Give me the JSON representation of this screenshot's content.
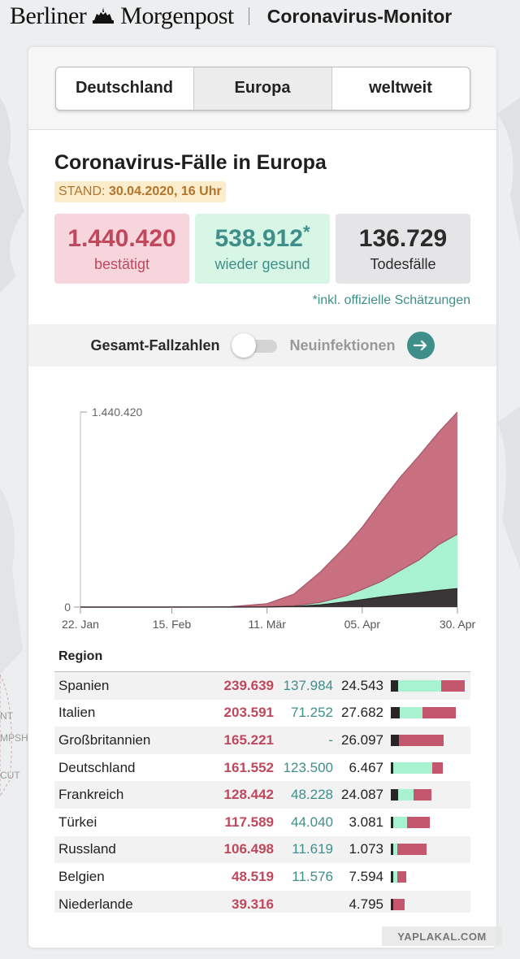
{
  "header": {
    "brand": "Berliner Morgenpost",
    "brand_left": "Berliner",
    "brand_right": "Morgenpost",
    "product_title": "Coronavirus-Monitor"
  },
  "tabs": [
    {
      "label": "Deutschland",
      "active": false
    },
    {
      "label": "Europa",
      "active": true
    },
    {
      "label": "weltweit",
      "active": false
    }
  ],
  "main": {
    "title": "Coronavirus-Fälle in Europa",
    "stand_label": "STAND:",
    "stand_value": "30.04.2020, 16 Uhr",
    "stats": {
      "confirmed_value": "1.440.420",
      "confirmed_label": "bestätigt",
      "recovered_value": "538.912",
      "recovered_mark": "*",
      "recovered_label": "wieder gesund",
      "deaths_value": "136.729",
      "deaths_label": "Todesfälle"
    },
    "footnote": "*inkl. offizielle Schätzungen",
    "toggle": {
      "left_label": "Gesamt-Fallzahlen",
      "right_label": "Neuinfektionen",
      "state": "off"
    }
  },
  "chart_data": {
    "type": "area",
    "x_ticks": [
      "22. Jan",
      "15. Feb",
      "11. Mär",
      "05. Apr",
      "30. Apr"
    ],
    "y_tick_labels": [
      "0",
      "1.440.420"
    ],
    "ylim": [
      0,
      1440420
    ],
    "x": [
      "22. Jan",
      "15. Feb",
      "01. Mär",
      "11. Mär",
      "18. Mär",
      "25. Mär",
      "01. Apr",
      "05. Apr",
      "10. Apr",
      "15. Apr",
      "20. Apr",
      "25. Apr",
      "30. Apr"
    ],
    "series": [
      {
        "key": "confirmed",
        "color": "#c97080",
        "values": [
          0,
          50,
          2500,
          25000,
          95000,
          260000,
          460000,
          590000,
          780000,
          960000,
          1120000,
          1290000,
          1440420
        ]
      },
      {
        "key": "recovered",
        "color": "#a8f2d2",
        "values": [
          0,
          10,
          500,
          3000,
          10000,
          35000,
          85000,
          130000,
          190000,
          270000,
          350000,
          460000,
          538912
        ]
      },
      {
        "key": "deaths",
        "color": "#3a3638",
        "values": [
          0,
          0,
          40,
          800,
          5000,
          17000,
          40000,
          55000,
          75000,
          92000,
          107000,
          123000,
          136729
        ]
      }
    ],
    "grid": false,
    "legend": "none"
  },
  "table": {
    "header": "Region",
    "colors": {
      "deaths": "#2b2427",
      "recovered": "#a8f2d2",
      "active": "#c4566d"
    },
    "bar_max": 239639,
    "rows": [
      {
        "name": "Spanien",
        "confirmed": "239.639",
        "recovered": "137.984",
        "deaths": "24.543",
        "c": 239639,
        "r": 137984,
        "d": 24543
      },
      {
        "name": "Italien",
        "confirmed": "203.591",
        "recovered": "71.252",
        "deaths": "27.682",
        "c": 203591,
        "r": 71252,
        "d": 27682
      },
      {
        "name": "Großbritannien",
        "confirmed": "165.221",
        "recovered": "-",
        "deaths": "26.097",
        "c": 165221,
        "r": 0,
        "d": 26097
      },
      {
        "name": "Deutschland",
        "confirmed": "161.552",
        "recovered": "123.500",
        "deaths": "6.467",
        "c": 161552,
        "r": 123500,
        "d": 6467
      },
      {
        "name": "Frankreich",
        "confirmed": "128.442",
        "recovered": "48.228",
        "deaths": "24.087",
        "c": 128442,
        "r": 48228,
        "d": 24087
      },
      {
        "name": "Türkei",
        "confirmed": "117.589",
        "recovered": "44.040",
        "deaths": "3.081",
        "c": 117589,
        "r": 44040,
        "d": 3081
      },
      {
        "name": "Russland",
        "confirmed": "106.498",
        "recovered": "11.619",
        "deaths": "1.073",
        "c": 106498,
        "r": 11619,
        "d": 1073
      },
      {
        "name": "Belgien",
        "confirmed": "48.519",
        "recovered": "11.576",
        "deaths": "7.594",
        "c": 48519,
        "r": 11576,
        "d": 7594
      },
      {
        "name": "Niederlande",
        "confirmed": "39.316",
        "recovered": "",
        "deaths": "4.795",
        "c": 39316,
        "r": 0,
        "d": 4795
      }
    ]
  },
  "watermark": "YAPLAKAL.COM"
}
